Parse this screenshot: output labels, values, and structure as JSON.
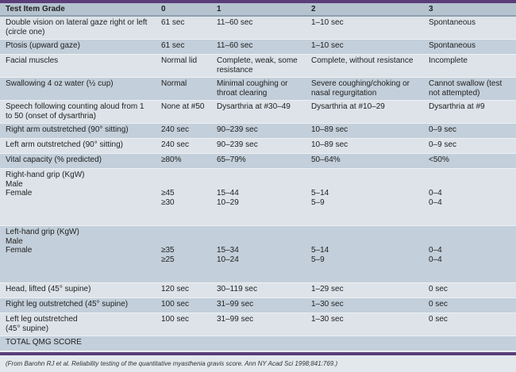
{
  "table": {
    "headers": [
      "Test Item Grade",
      "0",
      "1",
      "2",
      "3"
    ],
    "rows": [
      {
        "cells": [
          "Double vision on lateral gaze right or left (circle one)",
          "61 sec",
          "11–60 sec",
          "1–10 sec",
          "Spontaneous"
        ],
        "tone": "light",
        "h": "h2"
      },
      {
        "cells": [
          "Ptosis (upward gaze)",
          "61 sec",
          "11–60 sec",
          "1–10 sec",
          "Spontaneous"
        ],
        "tone": "dark",
        "h": "h1"
      },
      {
        "cells": [
          "Facial muscles",
          "Normal lid",
          "Complete, weak, some resistance",
          "Complete, without resistance",
          "Incomplete"
        ],
        "tone": "light",
        "h": "h2"
      },
      {
        "cells": [
          "Swallowing 4 oz water (½ cup)",
          "Normal",
          "Minimal coughing or throat clearing",
          "Severe coughing/choking or nasal regurgitation",
          "Cannot swallow (test not attempted)"
        ],
        "tone": "dark",
        "h": "h2"
      },
      {
        "cells": [
          "Speech following counting aloud from 1 to 50 (onset of dysarthria)",
          "None at #50",
          "Dysarthria at #30–49",
          "Dysarthria at #10–29",
          "Dysarthria at #9"
        ],
        "tone": "light",
        "h": "h2"
      },
      {
        "cells": [
          "Right arm outstretched (90° sitting)",
          "240 sec",
          "90–239 sec",
          "10–89 sec",
          "0–9 sec"
        ],
        "tone": "dark",
        "h": "h1"
      },
      {
        "cells": [
          "Left arm outstretched (90° sitting)",
          "240 sec",
          "90–239 sec",
          "10–89 sec",
          "0–9 sec"
        ],
        "tone": "light",
        "h": "h1"
      },
      {
        "cells": [
          "Vital capacity (% predicted)",
          "≥80%",
          "65–79%",
          "50–64%",
          "<50%"
        ],
        "tone": "dark",
        "h": "h1"
      },
      {
        "cells": [
          "Right-hand grip (KgW)\nMale\nFemale",
          "≥45\n≥30",
          "15–44\n10–29",
          "5–14\n5–9",
          "0–4\n0–4"
        ],
        "tone": "light",
        "h": "h4",
        "grip": true
      },
      {
        "cells": [
          "Left-hand grip (KgW)\nMale\nFemale",
          "≥35\n≥25",
          "15–34\n10–24",
          "5–14\n5–9",
          "0–4\n0–4"
        ],
        "tone": "dark",
        "h": "h4",
        "grip": true
      },
      {
        "cells": [
          "Head, lifted (45° supine)",
          "120 sec",
          "30–119 sec",
          "1–29 sec",
          "0 sec"
        ],
        "tone": "light",
        "h": "h1"
      },
      {
        "cells": [
          "Right leg outstretched (45° supine)",
          "100 sec",
          "31–99 sec",
          "1–30 sec",
          "0 sec"
        ],
        "tone": "dark",
        "h": "h1"
      },
      {
        "cells": [
          "Left leg outstretched\n(45° supine)",
          "100 sec",
          "31–99 sec",
          "1–30 sec",
          "0 sec"
        ],
        "tone": "light",
        "h": "h2"
      },
      {
        "cells": [
          "TOTAL QMG SCORE",
          "",
          "",
          "",
          ""
        ],
        "tone": "dark",
        "h": "h1"
      }
    ]
  },
  "caption": "(From Barohn RJ et al. Reliability testing of the quantitative myasthenia gravis score. Ann NY Acad Sci 1998;841:769.)",
  "colors": {
    "accent": "#5a3d78",
    "header": "#b5c3cf",
    "row_light": "#dde3e9",
    "row_dark": "#c3cfda"
  }
}
